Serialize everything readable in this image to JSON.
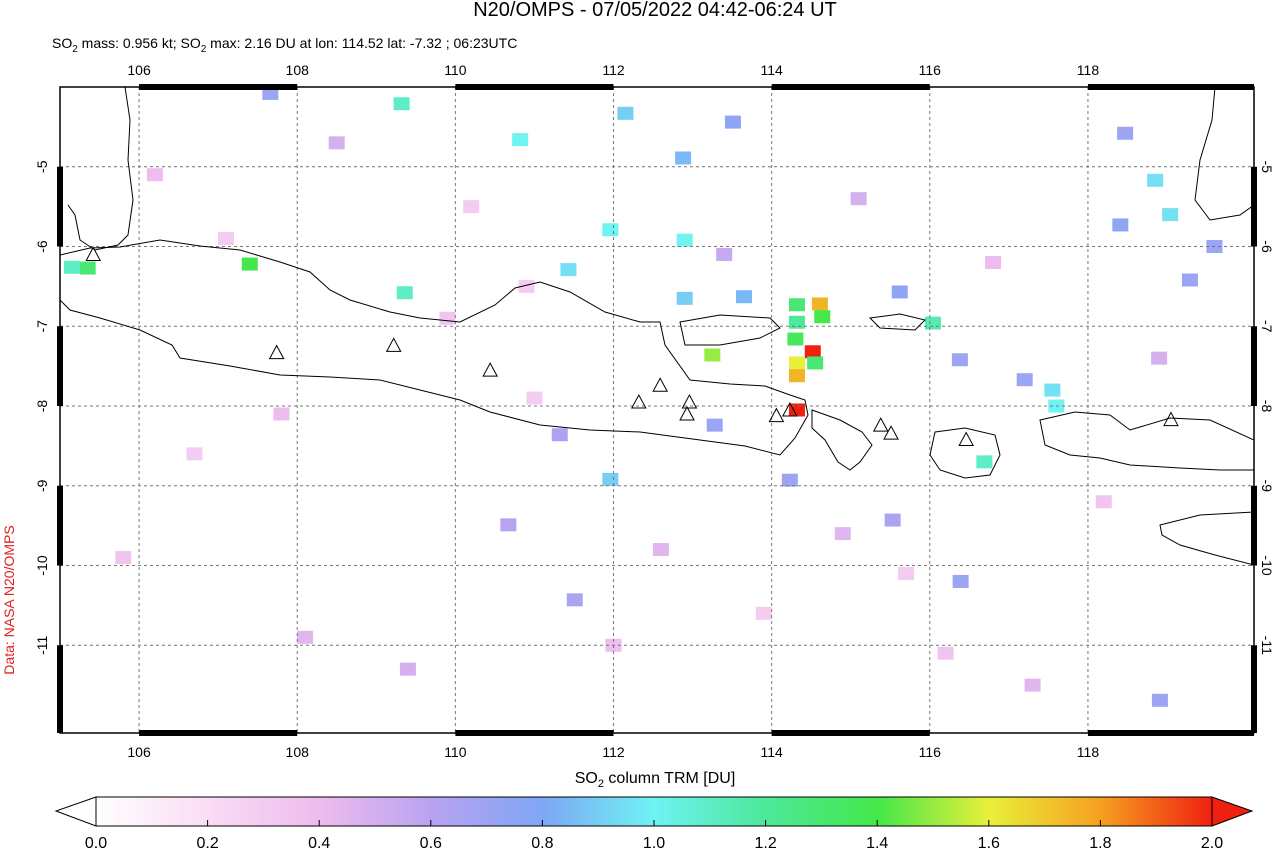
{
  "map": {
    "title": "N20/OMPS - 07/05/2022 04:42-06:24 UT",
    "subtitle": [
      "SO",
      "2",
      " mass: 0.956 kt; SO",
      "2",
      " max: 2.16 DU at lon: 114.52 lat: -7.32 ; 06:23UTC"
    ],
    "credit": "Data: NASA N20/OMPS",
    "xlim": [
      105,
      120.1
    ],
    "ylim": [
      -12.1,
      -4.0
    ],
    "xticks": [
      106,
      108,
      110,
      112,
      114,
      116,
      118
    ],
    "yticks": [
      -5,
      -6,
      -7,
      -8,
      -9,
      -10,
      -11
    ],
    "grid": true,
    "colorbar": {
      "label": [
        "SO",
        "2",
        " column TRM [DU]"
      ],
      "range": [
        0,
        2
      ],
      "ticks": [
        {
          "value": 0,
          "label": "0.0"
        },
        {
          "value": 0.2,
          "label": "0.2"
        },
        {
          "value": 0.4,
          "label": "0.4"
        },
        {
          "value": 0.6,
          "label": "0.6"
        },
        {
          "value": 0.8,
          "label": "0.8"
        },
        {
          "value": 1,
          "label": "1.0"
        },
        {
          "value": 1.2,
          "label": "1.2"
        },
        {
          "value": 1.4,
          "label": "1.4"
        },
        {
          "value": 1.6,
          "label": "1.6"
        },
        {
          "value": 1.8,
          "label": "1.8"
        },
        {
          "value": 2,
          "label": "2.0"
        }
      ],
      "colormap": [
        {
          "value": 0,
          "color": "#ffffff"
        },
        {
          "value": 0.2,
          "color": "#fadcf5"
        },
        {
          "value": 0.4,
          "color": "#eebcee"
        },
        {
          "value": 0.6,
          "color": "#b9a3f0"
        },
        {
          "value": 0.8,
          "color": "#7ea6f5"
        },
        {
          "value": 1,
          "color": "#6ff3f3"
        },
        {
          "value": 1.2,
          "color": "#4de89a"
        },
        {
          "value": 1.4,
          "color": "#44e84a"
        },
        {
          "value": 1.6,
          "color": "#e8f03a"
        },
        {
          "value": 1.8,
          "color": "#f5a020"
        },
        {
          "value": 2,
          "color": "#f02010"
        }
      ]
    },
    "cells": {
      "lon": [
        114.61,
        114.32,
        114.64,
        114.32,
        114.3,
        114.52,
        114.55,
        114.32,
        114.32,
        114.32,
        113.25,
        116.04,
        117.55,
        117.6,
        119.04,
        118.85,
        105.15,
        105.35,
        107.4,
        109.36,
        109.32,
        110.82,
        112.15,
        113.51,
        112.88,
        112.9,
        111.96,
        111.43,
        112.9,
        113.65,
        115.62,
        116.38,
        117.2,
        116.69,
        111.96,
        116.39,
        118.91,
        118.41,
        119.29,
        119.6,
        118.47,
        107.66,
        111.32,
        113.28,
        114.23,
        115.53,
        111.51,
        110.67,
        106.2,
        107.1,
        108.5,
        109.9,
        111.0,
        112.6,
        113.9,
        115.1,
        116.8,
        118.2,
        106.7,
        108.1,
        109.4,
        110.2,
        112.0,
        113.4,
        115.7,
        117.3,
        118.9,
        105.8,
        107.8,
        110.9,
        114.9,
        116.2
      ],
      "lat": [
        -6.72,
        -6.73,
        -6.88,
        -6.95,
        -7.16,
        -7.32,
        -7.46,
        -7.46,
        -7.62,
        -8.05,
        -7.36,
        -6.96,
        -7.8,
        -8.0,
        -5.6,
        -5.17,
        -6.26,
        -6.27,
        -6.22,
        -6.58,
        -4.21,
        -4.66,
        -4.33,
        -4.44,
        -4.89,
        -5.92,
        -5.79,
        -6.29,
        -6.65,
        -6.63,
        -6.57,
        -7.42,
        -7.67,
        -8.7,
        -8.92,
        -10.2,
        -11.69,
        -5.73,
        -6.42,
        -6.0,
        -4.58,
        -4.08,
        -8.36,
        -8.24,
        -8.93,
        -9.43,
        -10.43,
        -9.49,
        -5.1,
        -5.9,
        -4.7,
        -6.9,
        -7.9,
        -9.8,
        -10.6,
        -5.4,
        -6.2,
        -9.2,
        -8.6,
        -10.9,
        -11.3,
        -5.5,
        -11.0,
        -6.1,
        -10.1,
        -11.5,
        -7.4,
        -9.9,
        -8.1,
        -6.5,
        -9.6,
        -11.1
      ],
      "values": [
        1.75,
        1.3,
        1.4,
        1.2,
        1.35,
        2.16,
        1.3,
        1.6,
        1.75,
        2.0,
        1.5,
        1.15,
        0.95,
        1.0,
        0.95,
        0.95,
        1.1,
        1.3,
        1.4,
        1.1,
        1.1,
        1.0,
        0.9,
        0.75,
        0.85,
        1.0,
        1.0,
        0.95,
        0.9,
        0.85,
        0.75,
        0.7,
        0.7,
        1.1,
        0.9,
        0.7,
        0.7,
        0.75,
        0.7,
        0.7,
        0.7,
        0.7,
        0.65,
        0.7,
        0.7,
        0.65,
        0.65,
        0.6,
        0.4,
        0.3,
        0.5,
        0.35,
        0.3,
        0.45,
        0.3,
        0.5,
        0.4,
        0.35,
        0.3,
        0.45,
        0.5,
        0.3,
        0.4,
        0.55,
        0.3,
        0.45,
        0.5,
        0.35,
        0.4,
        0.3,
        0.45,
        0.35
      ]
    },
    "volcanoes": {
      "lon": [
        105.42,
        107.74,
        109.22,
        110.44,
        112.32,
        112.59,
        112.96,
        112.93,
        114.06,
        114.23,
        115.38,
        115.51,
        116.46,
        119.05
      ],
      "lat": [
        -6.1,
        -7.33,
        -7.24,
        -7.55,
        -7.95,
        -7.74,
        -7.95,
        -8.1,
        -8.12,
        -8.05,
        -8.24,
        -8.34,
        -8.42,
        -8.17
      ]
    }
  }
}
